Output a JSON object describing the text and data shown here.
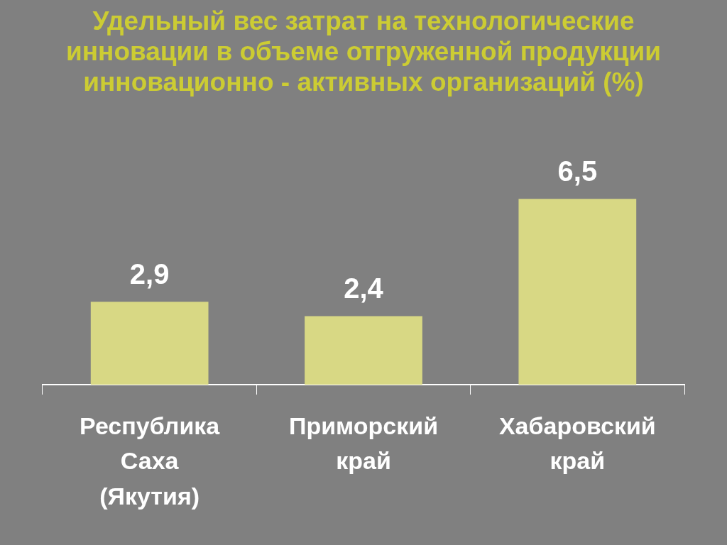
{
  "chart_data": {
    "type": "bar",
    "title": "Удельный вес затрат на технологические инновации в объеме отгруженной продукции инновационно - активных организаций (%)",
    "categories": [
      "Республика Саха (Якутия)",
      "Приморский край",
      "Хабаровский край"
    ],
    "values": [
      2.9,
      2.4,
      6.5
    ],
    "color": "#d8d884",
    "value_labels": [
      "2,9",
      "2,4",
      "6,5"
    ],
    "grid": false,
    "legend": false,
    "tick_labels": "x"
  }
}
